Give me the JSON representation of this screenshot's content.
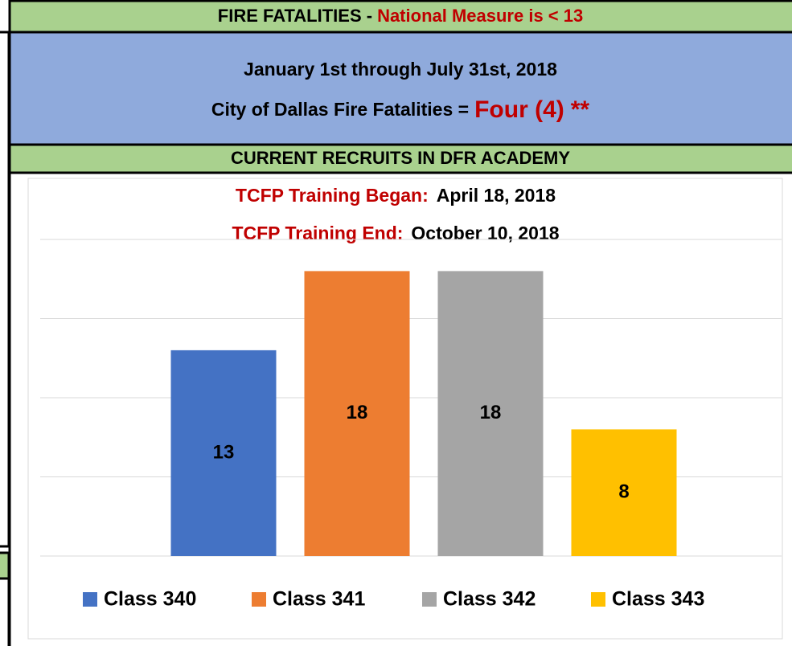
{
  "header": {
    "title": "FIRE FATALITIES -",
    "title_highlight": "National Measure is < 13"
  },
  "fatalities": {
    "period": "January 1st through July 31st, 2018",
    "label": "City of Dallas Fire Fatalities =",
    "count": "Four (4)",
    "note": "**"
  },
  "recruits": {
    "title": "CURRENT RECRUITS IN DFR ACADEMY"
  },
  "chart_data": {
    "type": "bar",
    "title_lines": [
      {
        "label": "TCFP Training Began:",
        "value": "April 18, 2018"
      },
      {
        "label": "TCFP Training End:",
        "value": "October 10, 2018"
      }
    ],
    "categories": [
      null
    ],
    "series": [
      {
        "name": "Class 340",
        "color": "#4472c4",
        "values": [
          13
        ]
      },
      {
        "name": "Class 341",
        "color": "#ed7d31",
        "values": [
          18
        ]
      },
      {
        "name": "Class 342",
        "color": "#a5a5a5",
        "values": [
          18
        ]
      },
      {
        "name": "Class 343",
        "color": "#ffc000",
        "values": [
          8
        ]
      }
    ],
    "ylim": [
      0,
      20
    ],
    "yticks": [
      0,
      5,
      10,
      15,
      20
    ],
    "grid": true,
    "legend": "bottom"
  }
}
